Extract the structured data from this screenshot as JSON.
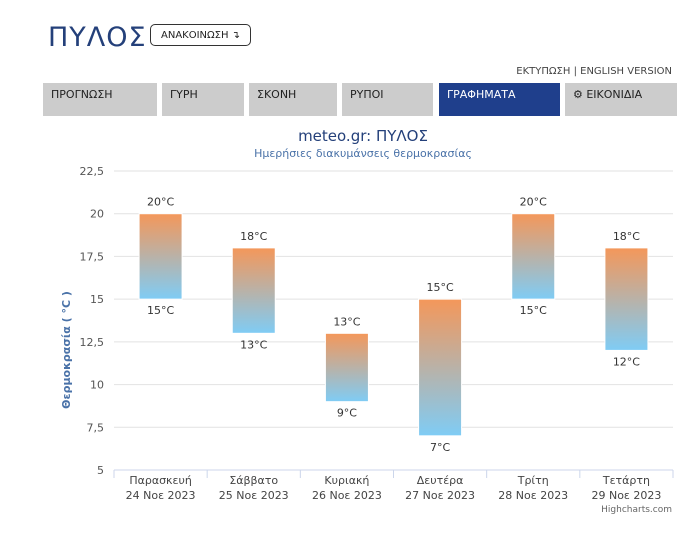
{
  "header": {
    "city": "ΠΥΛΟΣ",
    "announce_label": "ΑΝΑΚΟΙΝΩΣΗ ↴",
    "print_label": "ΕΚΤΥΠΩΣΗ",
    "separator": "|",
    "english_label": "ENGLISH VERSION"
  },
  "tabs": [
    {
      "label": "ΠΡΟΓΝΩΣΗ",
      "active": false
    },
    {
      "label": "ΓΥΡΗ",
      "active": false
    },
    {
      "label": "ΣΚΟΝΗ",
      "active": false
    },
    {
      "label": "ΡΥΠΟΙ",
      "active": false
    },
    {
      "label": "ΓΡΑΦΗΜΑΤΑ",
      "active": true
    },
    {
      "label": "⚙ ΕΙΚΟΝΙΔΙΑ",
      "active": false,
      "icon": "gear-icon"
    }
  ],
  "chart_data": {
    "type": "columnrange",
    "title": "meteo.gr: ΠΥΛΟΣ",
    "subtitle": "Ημερήσιες διακυμάνσεις θερμοκρασίας",
    "ylabel": "Θερμοκρασία ( °C )",
    "ylim": [
      5,
      22.5
    ],
    "yticks": [
      5,
      7.5,
      10,
      12.5,
      15,
      17.5,
      20,
      22.5
    ],
    "ytick_labels": [
      "5",
      "7,5",
      "10",
      "12,5",
      "15",
      "17,5",
      "20",
      "22,5"
    ],
    "categories": [
      [
        "Παρασκευή",
        "24 Νοε 2023"
      ],
      [
        "Σάββατο",
        "25 Νοε 2023"
      ],
      [
        "Κυριακή",
        "26 Νοε 2023"
      ],
      [
        "Δευτέρα",
        "27 Νοε 2023"
      ],
      [
        "Τρίτη",
        "28 Νοε 2023"
      ],
      [
        "Τετάρτη",
        "29 Νοε 2023"
      ]
    ],
    "low": [
      15,
      13,
      9,
      7,
      15,
      12
    ],
    "high": [
      20,
      18,
      13,
      15,
      20,
      18
    ],
    "low_labels": [
      "15°C",
      "13°C",
      "9°C",
      "7°C",
      "15°C",
      "12°C"
    ],
    "high_labels": [
      "20°C",
      "18°C",
      "13°C",
      "15°C",
      "20°C",
      "18°C"
    ],
    "grid": true,
    "colors": {
      "top": "#f4975a",
      "bottom": "#7fccf5",
      "title": "#24407a",
      "axis_label": "#4a72a8"
    },
    "credit": "Highcharts.com"
  }
}
